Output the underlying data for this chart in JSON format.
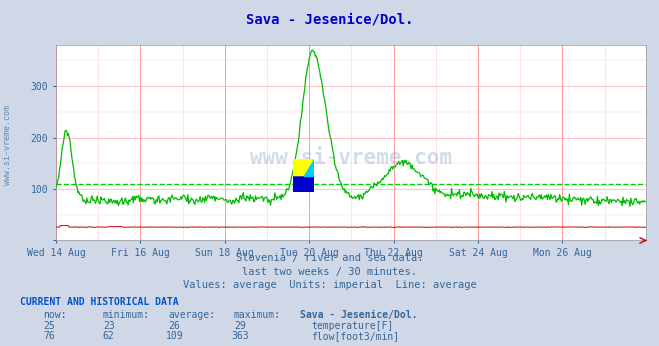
{
  "title": "Sava - Jesenice/Dol.",
  "title_color": "#0000cc",
  "bg_color": "#d0d8e8",
  "plot_bg_color": "#ffffff",
  "text_color": "#336699",
  "ylabel_range": [
    0,
    380
  ],
  "yticks": [
    0,
    100,
    200,
    300
  ],
  "avg_flow_line": 109,
  "subtitle_lines": [
    "Slovenia / river and sea data.",
    "last two weeks / 30 minutes.",
    "Values: average  Units: imperial  Line: average"
  ],
  "table_header": "CURRENT AND HISTORICAL DATA",
  "table_cols": [
    "now:",
    "minimum:",
    "average:",
    "maximum:",
    "Sava - Jesenice/Dol."
  ],
  "table_rows": [
    [
      "25",
      "23",
      "26",
      "29",
      "temperature[F]",
      "#cc0000"
    ],
    [
      "76",
      "62",
      "109",
      "363",
      "flow[foot3/min]",
      "#00bb00"
    ]
  ],
  "xticklabels": [
    "Wed 14 Aug",
    "Fri 16 Aug",
    "Sun 18 Aug",
    "Tue 20 Aug",
    "Thu 22 Aug",
    "Sat 24 Aug",
    "Mon 26 Aug"
  ],
  "n_points": 672,
  "watermark": "www.si-vreme.com",
  "temp_color": "#cc0000",
  "flow_color": "#00bb00",
  "flow_avg_color": "#00cc00"
}
